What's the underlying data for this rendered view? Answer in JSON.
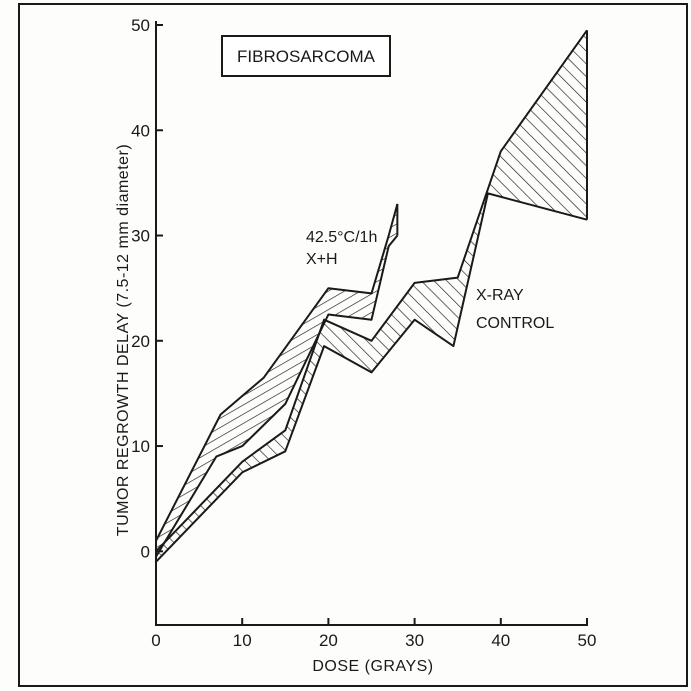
{
  "chart_data": {
    "type": "area",
    "title": "FIBROSARCOMA",
    "xlabel": "DOSE (GRAYS)",
    "ylabel": "TUMOR REGROWTH DELAY (7.5-12 mm diameter)",
    "xlim": [
      0,
      50
    ],
    "ylim": [
      -7,
      50
    ],
    "xticks": [
      0,
      10,
      20,
      30,
      40,
      50
    ],
    "yticks": [
      0,
      10,
      20,
      30,
      40,
      50
    ],
    "grid": false,
    "legend": "none",
    "series": [
      {
        "name": "X-RAY CONTROL",
        "label_lines": [
          "X-RAY",
          "CONTROL"
        ],
        "fill_pattern": "diagonal-hatch",
        "upper": [
          {
            "x": 0,
            "y": 0
          },
          {
            "x": 10,
            "y": 8.5
          },
          {
            "x": 15,
            "y": 11.5
          },
          {
            "x": 19.5,
            "y": 22
          },
          {
            "x": 25,
            "y": 20
          },
          {
            "x": 30,
            "y": 25.5
          },
          {
            "x": 35,
            "y": 26
          },
          {
            "x": 40,
            "y": 38
          },
          {
            "x": 50,
            "y": 49.5
          }
        ],
        "lower": [
          {
            "x": 0,
            "y": -1
          },
          {
            "x": 10,
            "y": 7.5
          },
          {
            "x": 15,
            "y": 9.5
          },
          {
            "x": 19.5,
            "y": 19.5
          },
          {
            "x": 25,
            "y": 17
          },
          {
            "x": 30,
            "y": 22
          },
          {
            "x": 34.5,
            "y": 19.5
          },
          {
            "x": 38.5,
            "y": 34
          },
          {
            "x": 50,
            "y": 31.5
          }
        ]
      },
      {
        "name": "42.5°C/1h X+H",
        "label_lines": [
          "42.5°C/1h",
          "X+H"
        ],
        "fill_pattern": "horizontal-hatch",
        "upper": [
          {
            "x": 0,
            "y": 1
          },
          {
            "x": 7.5,
            "y": 13
          },
          {
            "x": 12.5,
            "y": 16.5
          },
          {
            "x": 20,
            "y": 25
          },
          {
            "x": 25,
            "y": 24.5
          },
          {
            "x": 27,
            "y": 30
          },
          {
            "x": 28,
            "y": 33
          }
        ],
        "lower": [
          {
            "x": 0,
            "y": -0.5
          },
          {
            "x": 7,
            "y": 9
          },
          {
            "x": 10,
            "y": 10
          },
          {
            "x": 15,
            "y": 14
          },
          {
            "x": 20,
            "y": 22.5
          },
          {
            "x": 25,
            "y": 22
          },
          {
            "x": 27,
            "y": 29
          },
          {
            "x": 28,
            "y": 30
          }
        ]
      }
    ]
  }
}
